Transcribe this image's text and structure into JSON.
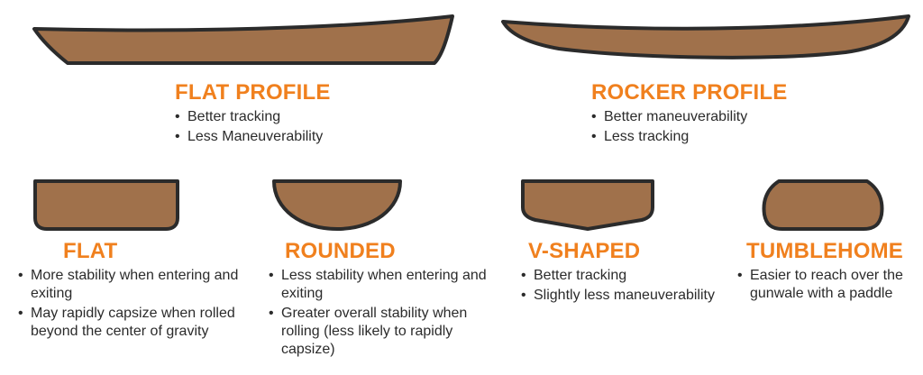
{
  "colors": {
    "hull_fill": "#a0714b",
    "hull_stroke": "#2b2b2b",
    "title": "#f0801e",
    "text": "#2b2b2b"
  },
  "profiles": [
    {
      "id": "flat-profile",
      "title": "FLAT PROFILE",
      "bullets": [
        "Better tracking",
        "Less Maneuverability"
      ]
    },
    {
      "id": "rocker-profile",
      "title": "ROCKER PROFILE",
      "bullets": [
        "Better maneuverability",
        "Less tracking"
      ]
    }
  ],
  "hulls": [
    {
      "id": "flat",
      "title": "FLAT",
      "bullets": [
        "More stability when entering and exiting",
        "May rapidly capsize when rolled beyond the center of gravity"
      ]
    },
    {
      "id": "rounded",
      "title": "ROUNDED",
      "bullets": [
        "Less stability when entering and exiting",
        "Greater overall stability when rolling (less likely to rapidly capsize)"
      ]
    },
    {
      "id": "v-shaped",
      "title": "V-SHAPED",
      "bullets": [
        "Better tracking",
        "Slightly less maneuverability"
      ]
    },
    {
      "id": "tumblehome",
      "title": "TUMBLEHOME",
      "bullets": [
        "Easier to reach over the gunwale with a paddle"
      ]
    }
  ]
}
